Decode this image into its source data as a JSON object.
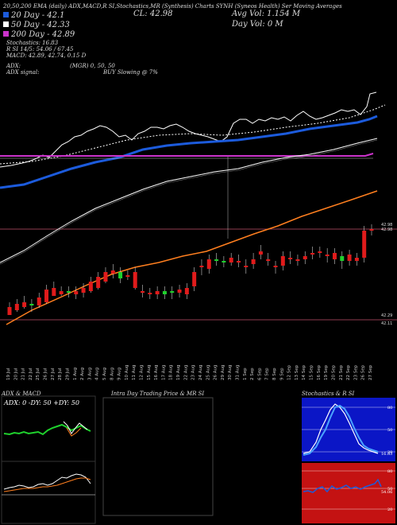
{
  "header": {
    "line1": "20,50,200  EMA (daily) ADX,MACD,R    SI,Stochastics,MR   (Synthesis)  Charts SYNH    (Syneos Health) Ser Moving Averages",
    "cl": "CL: 42.98",
    "avg_vol": "Avg Vol: 1.154   M",
    "day_vol": "Day Vol: 0   M",
    "legend_20": "20 Day - 42.1",
    "legend_50": "50 Day - 42.33",
    "legend_200": "200 Day - 42.89",
    "stochastics": "Stochastics: 16.83",
    "rsi": "R          SI 14/5: 54.06 / 67.45",
    "macd": "MACD: 42.89, 42.74, 0.15 D",
    "adx": "ADX:",
    "mgr": "(MGR) 0,  50,  50",
    "adx_signal": "ADX  signal:",
    "buy_slowing": "BUY Slowing @ 7%"
  },
  "colors": {
    "ema20": "#1c5bdc",
    "ema50": "#ffffff",
    "ema200": "#ff7f1f",
    "magenta": "#cc33cc",
    "up": "#1fd12d",
    "down": "#e01b1b",
    "adx_line": "#1fd12d",
    "macd_line": "#ffffff",
    "signal_line": "#ff7f1f",
    "stoch_bg": "#0b16c6",
    "rsi_bg": "#c41212"
  },
  "chart_data": {
    "type": "candlestick",
    "x": [
      "19 Jul",
      "20 Jul",
      "21 Jul",
      "22 Jul",
      "25 Jul",
      "26 Jul",
      "27 Jul",
      "28 Jul",
      "29 Jul",
      "1 Aug",
      "2 Aug",
      "3 Aug",
      "4 Aug",
      "5 Aug",
      "8 Aug",
      "9 Aug",
      "10 Aug",
      "11 Aug",
      "12 Aug",
      "15 Aug",
      "16 Aug",
      "17 Aug",
      "18 Aug",
      "19 Aug",
      "22 Aug",
      "23 Aug",
      "24 Aug",
      "25 Aug",
      "26 Aug",
      "29 Aug",
      "30 Aug",
      "31 Aug",
      "1 Sep",
      "2 Sep",
      "6 Sep",
      "7 Sep",
      "8 Sep",
      "9 Sep",
      "12 Sep",
      "13 Sep",
      "14 Sep",
      "15 Sep",
      "16 Sep",
      "19 Sep",
      "20 Sep",
      "21 Sep",
      "22 Sep",
      "23 Sep",
      "26 Sep",
      "27 Sep"
    ],
    "price_levels": [
      "42.98",
      "42.29",
      "42.11"
    ],
    "tick_labels": [
      "42.98",
      "42.29",
      "42.11"
    ],
    "stoch_ticks": [
      "80",
      "50",
      "20"
    ],
    "rsi_ticks": [
      "80",
      "50",
      "20"
    ],
    "stoch_value": "16.83",
    "rsi_value": "54.06"
  },
  "panels": {
    "adx_title": "ADX  & MACD",
    "adx_values": "ADX: 0  -DY: 50  +DY: 50",
    "intraday_title": "Intra  Day Trading Price  & MR               SI",
    "stoch_title": "Stochastics & R                SI"
  }
}
